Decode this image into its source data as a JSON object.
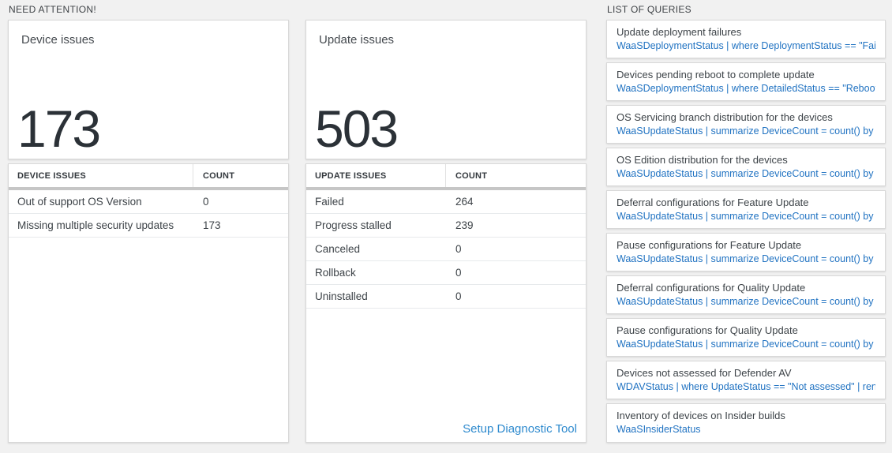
{
  "colors": {
    "page_bg": "#f1f1f1",
    "number_dark": "#2b3137",
    "bar_gray": "#c6c6c6",
    "query_blue": "#2173c2",
    "link_blue": "#2e8ace"
  },
  "need_attention": {
    "header": "NEED ATTENTION!"
  },
  "device_summary": {
    "title": "Device issues",
    "value": "173"
  },
  "update_summary": {
    "title": "Update issues",
    "value": "503"
  },
  "device_table": {
    "col1": "DEVICE ISSUES",
    "col2": "COUNT",
    "rows": [
      {
        "label": "Out of support OS Version",
        "count": "0"
      },
      {
        "label": "Missing multiple security updates",
        "count": "173"
      }
    ]
  },
  "update_table": {
    "col1": "UPDATE ISSUES",
    "col2": "COUNT",
    "rows": [
      {
        "label": "Failed",
        "count": "264"
      },
      {
        "label": "Progress stalled",
        "count": "239"
      },
      {
        "label": "Canceled",
        "count": "0"
      },
      {
        "label": "Rollback",
        "count": "0"
      },
      {
        "label": "Uninstalled",
        "count": "0"
      }
    ],
    "footer_link": "Setup Diagnostic Tool"
  },
  "queries_panel": {
    "header": "LIST OF QUERIES",
    "items": [
      {
        "title": "Update deployment failures",
        "query": "WaaSDeploymentStatus | where DeploymentStatus == \"Failed\" |..."
      },
      {
        "title": "Devices pending reboot to complete update",
        "query": "WaaSDeploymentStatus | where DetailedStatus == \"Reboot pend..."
      },
      {
        "title": "OS Servicing branch distribution for the devices",
        "query": "WaaSUpdateStatus | summarize DeviceCount = count() by OSSer..."
      },
      {
        "title": "OS Edition distribution for the devices",
        "query": "WaaSUpdateStatus | summarize DeviceCount = count() by OSEdit..."
      },
      {
        "title": "Deferral configurations for Feature Update",
        "query": "WaaSUpdateStatus | summarize DeviceCount = count() by Featur..."
      },
      {
        "title": "Pause configurations for Feature Update",
        "query": "WaaSUpdateStatus | summarize DeviceCount = count() by Featur..."
      },
      {
        "title": "Deferral configurations for Quality Update",
        "query": "WaaSUpdateStatus | summarize DeviceCount = count() by Qualit..."
      },
      {
        "title": "Pause configurations for Quality Update",
        "query": "WaaSUpdateStatus | summarize DeviceCount = count() by Qualit..."
      },
      {
        "title": "Devices not assessed for Defender AV",
        "query": "WDAVStatus | where UpdateStatus == \"Not assessed\" | render ta..."
      },
      {
        "title": "Inventory of devices on Insider builds",
        "query": "WaaSInsiderStatus"
      }
    ]
  }
}
